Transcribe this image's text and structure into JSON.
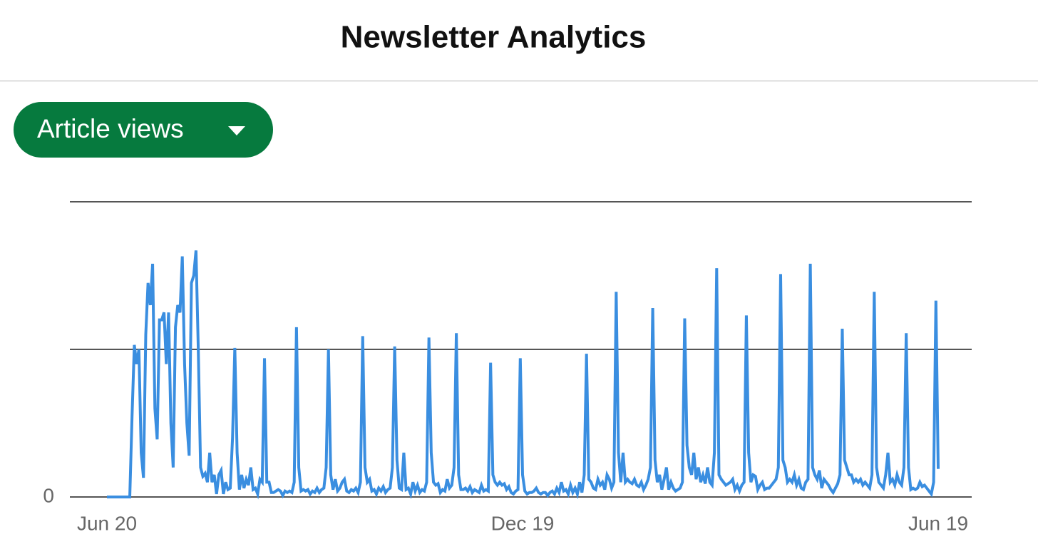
{
  "header": {
    "title": "Newsletter Analytics"
  },
  "dropdown": {
    "label": "Article views"
  },
  "chart_data": {
    "type": "line",
    "color": "#3a8ee0",
    "xlim": [
      0,
      364
    ],
    "xticks": [
      {
        "value": 0,
        "label": "Jun 20"
      },
      {
        "value": 182,
        "label": "Dec 19"
      },
      {
        "value": 364,
        "label": "Jun 19"
      }
    ],
    "ylim": [
      0,
      2
    ],
    "yticks": [
      0
    ],
    "gridlines": [
      0,
      1,
      2
    ],
    "values": [
      0,
      0,
      0,
      0,
      0,
      0,
      0,
      0,
      0,
      0,
      0,
      0.55,
      1.03,
      0.9,
      1.0,
      0.3,
      0.13,
      1.1,
      1.45,
      1.3,
      1.58,
      0.6,
      0.39,
      1.2,
      1.2,
      1.25,
      0.9,
      1.25,
      0.5,
      0.2,
      1.15,
      1.3,
      1.25,
      1.63,
      0.9,
      0.5,
      0.28,
      1.45,
      1.5,
      1.67,
      1.0,
      0.2,
      0.14,
      0.16,
      0.1,
      0.3,
      0.1,
      0.15,
      0.02,
      0.15,
      0.18,
      0.02,
      0.1,
      0.05,
      0.06,
      0.4,
      1.01,
      0.3,
      0.05,
      0.15,
      0.06,
      0.12,
      0.08,
      0.2,
      0.05,
      0.06,
      0.02,
      0.12,
      0.1,
      0.94,
      0.1,
      0.1,
      0.03,
      0.03,
      0.04,
      0.05,
      0.04,
      0.01,
      0.04,
      0.03,
      0.04,
      0.03,
      0.1,
      1.15,
      0.2,
      0.04,
      0.05,
      0.04,
      0.05,
      0.02,
      0.04,
      0.03,
      0.06,
      0.03,
      0.05,
      0.06,
      0.2,
      1.0,
      0.15,
      0.05,
      0.12,
      0.04,
      0.06,
      0.1,
      0.12,
      0.04,
      0.03,
      0.05,
      0.04,
      0.06,
      0.03,
      0.1,
      1.09,
      0.2,
      0.1,
      0.12,
      0.04,
      0.05,
      0.02,
      0.06,
      0.04,
      0.07,
      0.03,
      0.05,
      0.06,
      0.2,
      1.02,
      0.25,
      0.06,
      0.05,
      0.3,
      0.05,
      0.06,
      0.02,
      0.1,
      0.04,
      0.08,
      0.03,
      0.05,
      0.04,
      0.1,
      1.08,
      0.3,
      0.1,
      0.08,
      0.09,
      0.03,
      0.05,
      0.04,
      0.12,
      0.06,
      0.08,
      0.2,
      1.11,
      0.15,
      0.05,
      0.05,
      0.06,
      0.04,
      0.07,
      0.03,
      0.05,
      0.04,
      0.03,
      0.08,
      0.04,
      0.05,
      0.04,
      0.91,
      0.15,
      0.1,
      0.08,
      0.1,
      0.08,
      0.09,
      0.05,
      0.07,
      0.03,
      0.02,
      0.04,
      0.05,
      0.94,
      0.15,
      0.04,
      0.02,
      0.03,
      0.03,
      0.04,
      0.06,
      0.03,
      0.02,
      0.03,
      0.03,
      0.01,
      0.03,
      0.04,
      0.02,
      0.06,
      0.03,
      0.1,
      0.04,
      0.05,
      0.02,
      0.08,
      0.03,
      0.06,
      0.02,
      0.1,
      0.03,
      0.15,
      0.97,
      0.12,
      0.1,
      0.06,
      0.05,
      0.12,
      0.08,
      0.1,
      0.05,
      0.15,
      0.12,
      0.06,
      0.1,
      1.39,
      0.3,
      0.1,
      0.3,
      0.1,
      0.12,
      0.1,
      0.09,
      0.12,
      0.08,
      0.07,
      0.1,
      0.05,
      0.08,
      0.12,
      0.2,
      1.28,
      0.25,
      0.1,
      0.15,
      0.05,
      0.12,
      0.2,
      0.05,
      0.1,
      0.06,
      0.04,
      0.05,
      0.06,
      0.1,
      1.21,
      0.35,
      0.2,
      0.15,
      0.3,
      0.12,
      0.2,
      0.1,
      0.15,
      0.09,
      0.2,
      0.1,
      0.08,
      0.3,
      1.55,
      0.15,
      0.12,
      0.1,
      0.08,
      0.09,
      0.1,
      0.12,
      0.05,
      0.08,
      0.04,
      0.08,
      0.1,
      1.23,
      0.3,
      0.1,
      0.15,
      0.14,
      0.05,
      0.08,
      0.1,
      0.05,
      0.06,
      0.06,
      0.08,
      0.1,
      0.12,
      0.2,
      1.51,
      0.25,
      0.2,
      0.1,
      0.12,
      0.1,
      0.15,
      0.08,
      0.12,
      0.06,
      0.05,
      0.1,
      0.12,
      1.58,
      0.2,
      0.15,
      0.12,
      0.18,
      0.06,
      0.12,
      0.1,
      0.08,
      0.05,
      0.03,
      0.06,
      0.09,
      0.15,
      1.14,
      0.25,
      0.2,
      0.15,
      0.15,
      0.1,
      0.12,
      0.1,
      0.12,
      0.08,
      0.1,
      0.08,
      0.06,
      0.15,
      1.39,
      0.2,
      0.1,
      0.08,
      0.06,
      0.15,
      0.3,
      0.1,
      0.12,
      0.08,
      0.15,
      0.1,
      0.08,
      0.2,
      1.11,
      0.2,
      0.05,
      0.06,
      0.05,
      0.06,
      0.1,
      0.07,
      0.08,
      0.06,
      0.04,
      0.02,
      0.1,
      1.33,
      0.19
    ]
  }
}
